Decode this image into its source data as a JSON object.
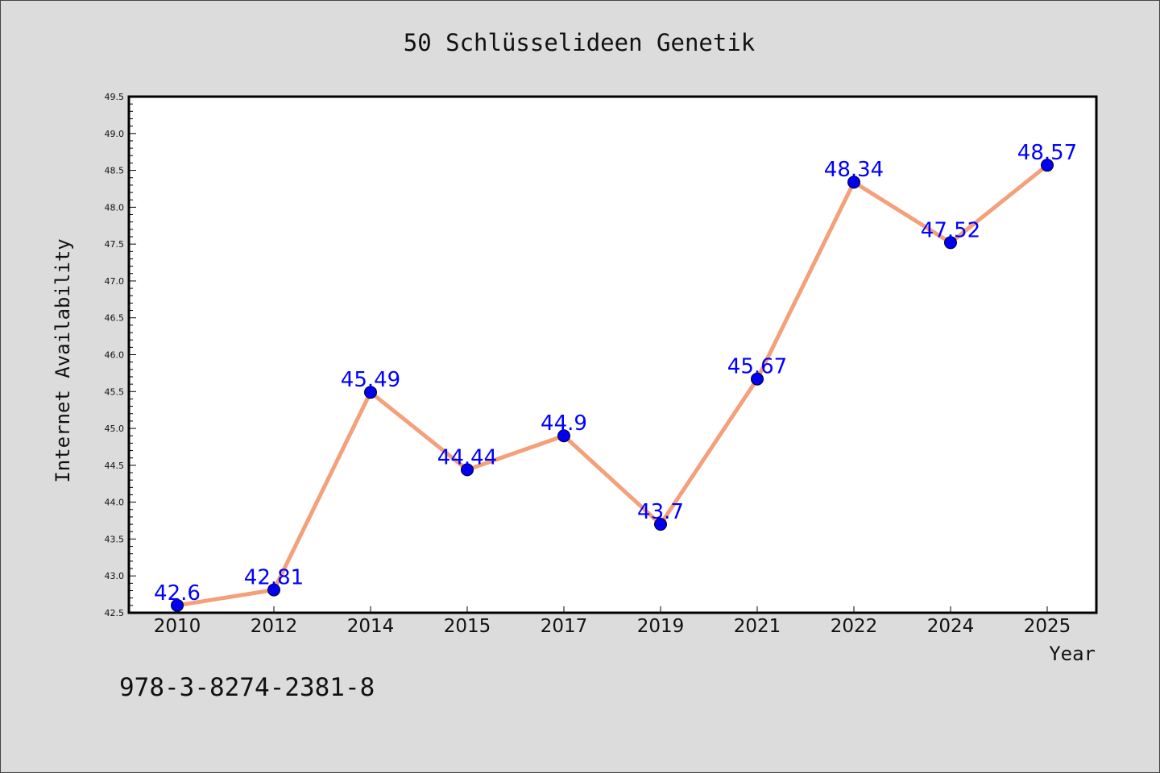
{
  "chart_data": {
    "type": "line",
    "title": "50 Schlüsselideen Genetik",
    "xlabel": "Year",
    "ylabel": "Internet Availability",
    "categories": [
      "2010",
      "2012",
      "2014",
      "2015",
      "2017",
      "2019",
      "2021",
      "2022",
      "2024",
      "2025"
    ],
    "series": [
      {
        "values": [
          42.6,
          42.81,
          45.49,
          44.44,
          44.9,
          43.7,
          45.67,
          48.34,
          47.52,
          48.57
        ],
        "data_labels": [
          "42.6",
          "42.81",
          "45.49",
          "44.44",
          "44.9",
          "43.7",
          "45.67",
          "48.34",
          "47.52",
          "48.57"
        ]
      }
    ],
    "ylim": [
      42.5,
      49.5
    ],
    "yticks": [
      "42.5",
      "43.0",
      "43.5",
      "44.0",
      "44.5",
      "45.0",
      "45.5",
      "46.0",
      "46.5",
      "47.0",
      "47.5",
      "48.0",
      "48.5",
      "49.0",
      "49.5"
    ],
    "grid": false,
    "legend": "none",
    "colors": {
      "line": "#f4a07a",
      "marker": "#0000ee",
      "label": "#0000ff",
      "background": "#dcdcdc",
      "plot_background": "#ffffff"
    }
  },
  "footer_text": "978-3-8274-2381-8"
}
